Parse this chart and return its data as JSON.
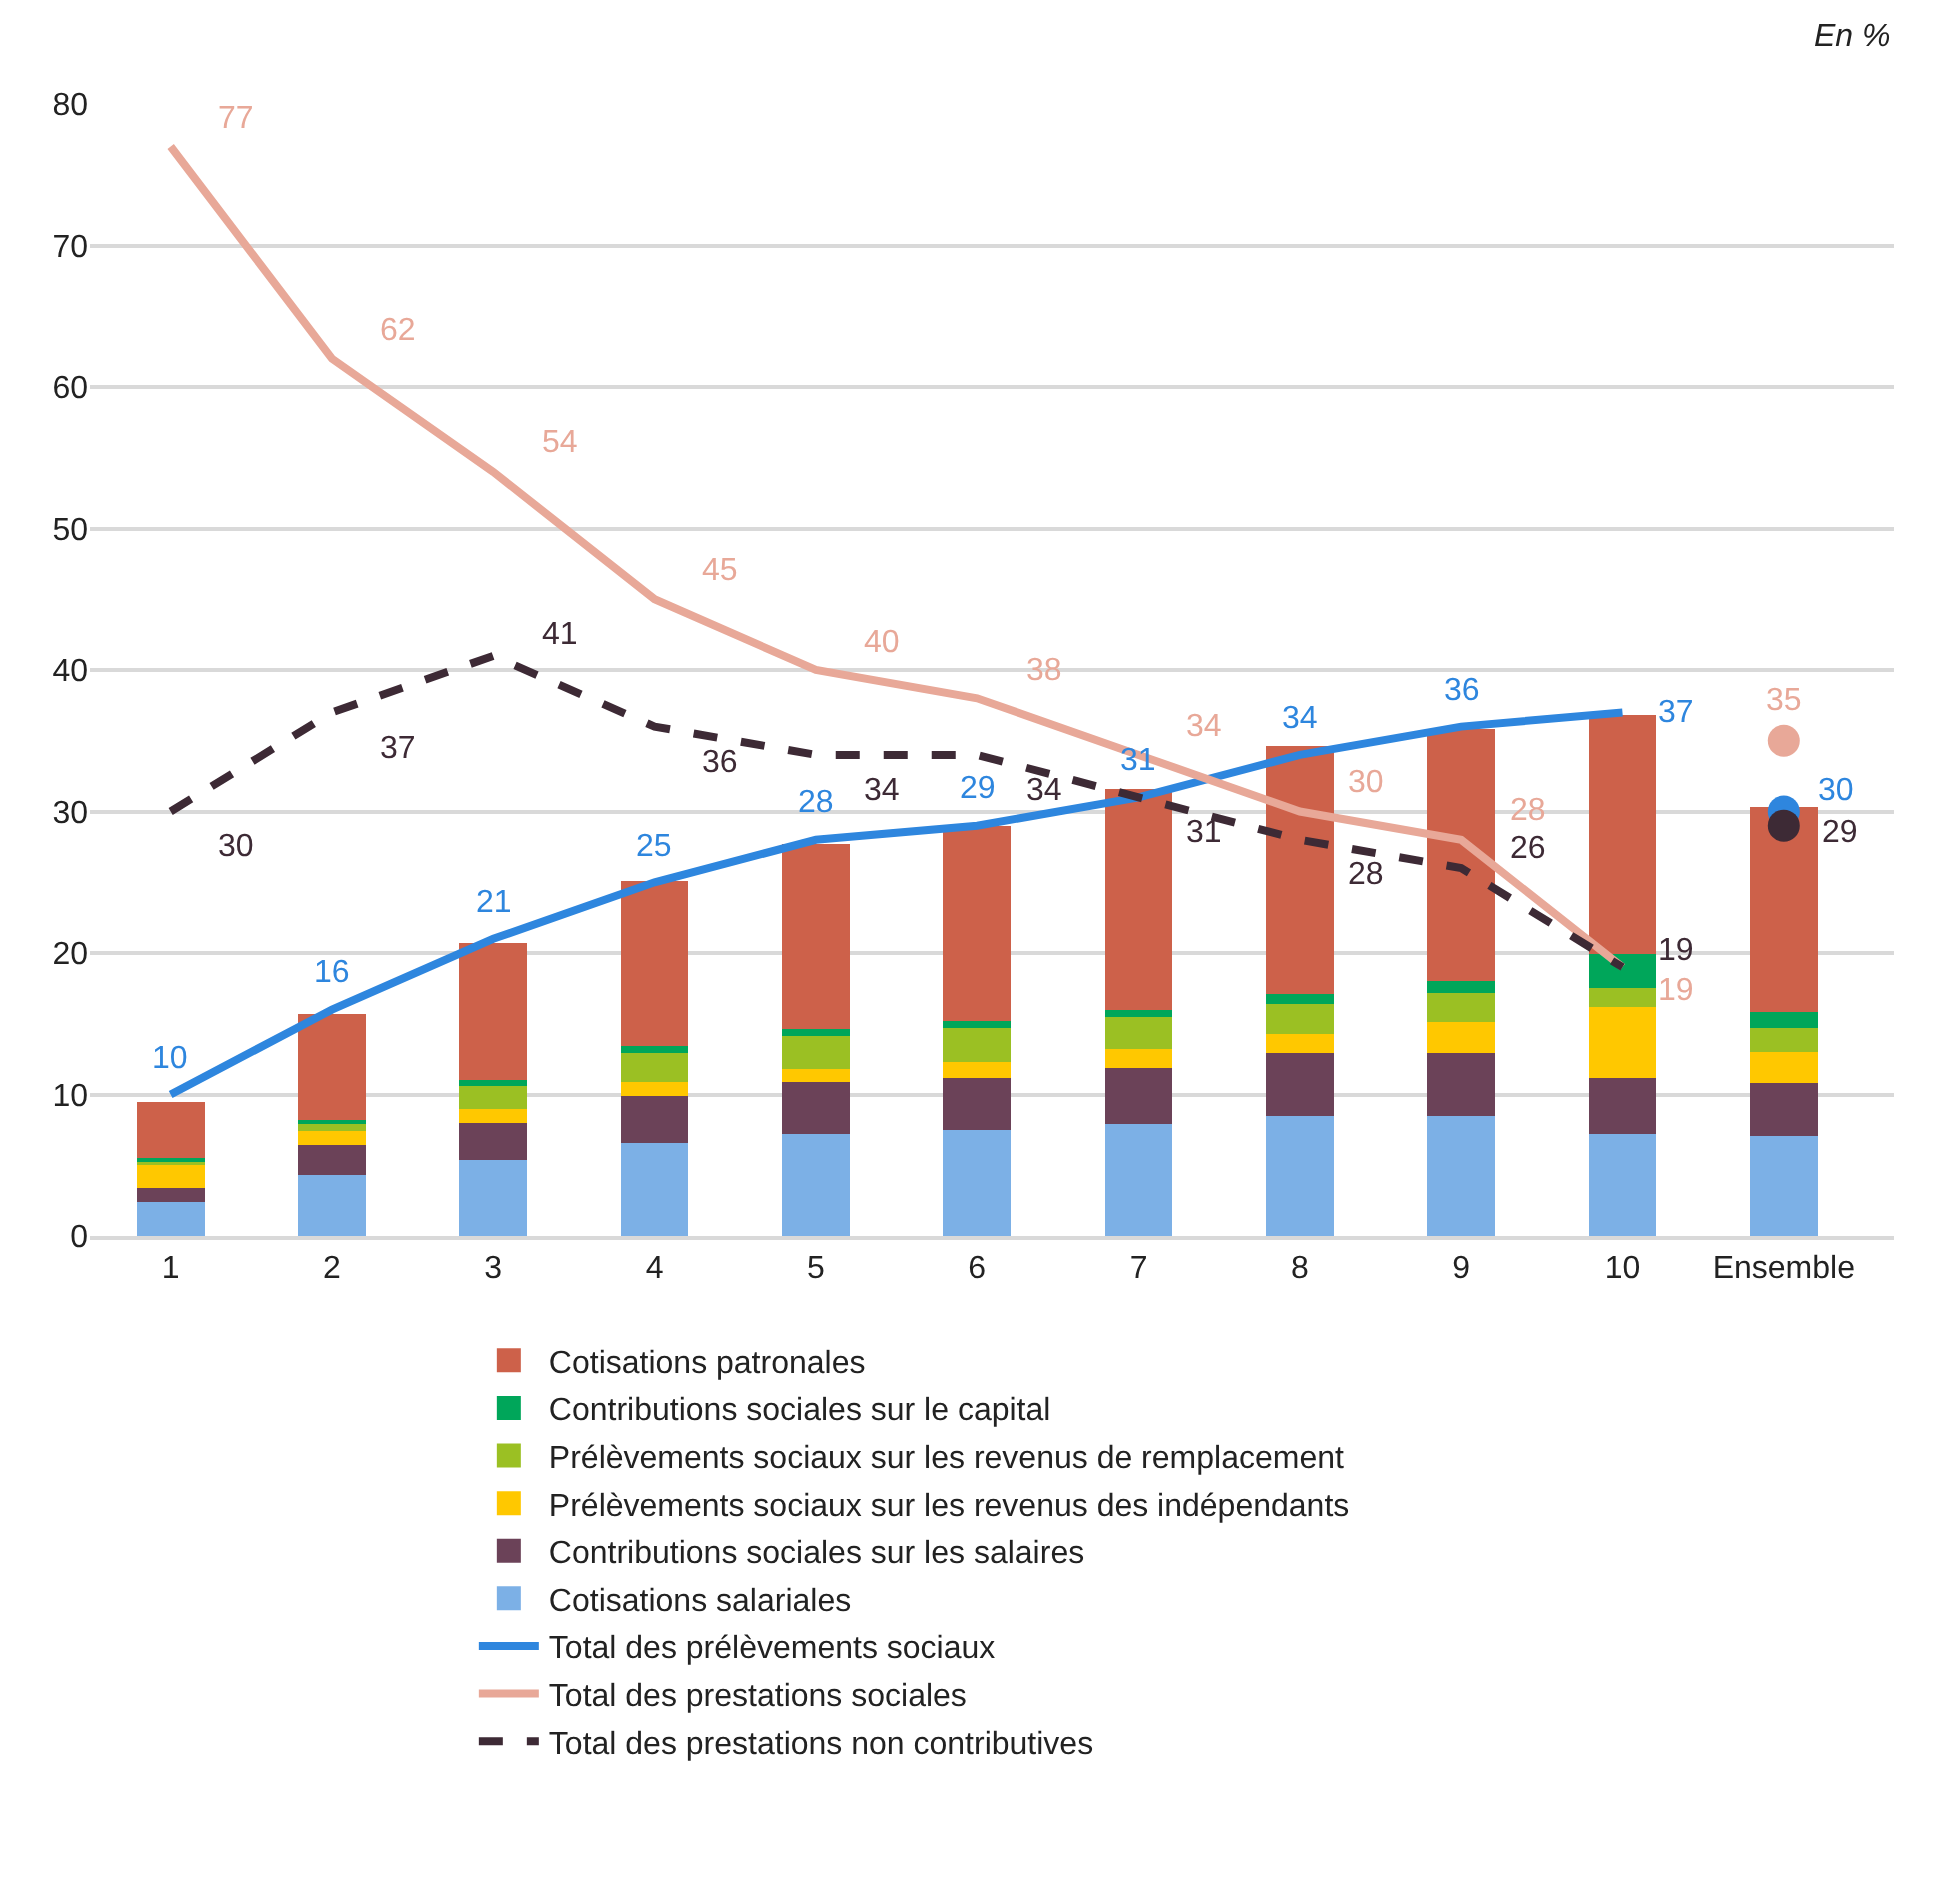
{
  "chart_data": {
    "type": "bar",
    "stacked": true,
    "annotations": [
      "En %"
    ],
    "categories": [
      "1",
      "2",
      "3",
      "4",
      "5",
      "6",
      "7",
      "8",
      "9",
      "10",
      "Ensemble"
    ],
    "ylim": [
      0,
      80
    ],
    "yticks": [
      0,
      10,
      20,
      30,
      40,
      50,
      60,
      70,
      80
    ],
    "grid": "y",
    "legend": "bottom",
    "series": [
      {
        "name": "Cotisations salariales",
        "color": "#7cb0e6",
        "values": [
          2.4,
          4.3,
          5.4,
          6.6,
          7.2,
          7.5,
          7.9,
          8.5,
          8.5,
          7.2,
          7.1
        ]
      },
      {
        "name": "Contributions sociales sur les salaires",
        "color": "#6b4258",
        "values": [
          1.0,
          2.1,
          2.6,
          3.3,
          3.7,
          3.7,
          4.0,
          4.4,
          4.4,
          4.0,
          3.7
        ]
      },
      {
        "name": "Prélèvements sociaux sur les revenus des indépendants",
        "color": "#ffc800",
        "values": [
          1.6,
          1.0,
          1.0,
          1.0,
          0.9,
          1.1,
          1.3,
          1.4,
          2.2,
          5.0,
          2.2
        ]
      },
      {
        "name": "Prélèvements sociaux sur les revenus de remplacement",
        "color": "#9bc023",
        "values": [
          0.3,
          0.6,
          1.6,
          2.0,
          2.3,
          2.4,
          2.3,
          2.1,
          2.1,
          1.3,
          1.7
        ]
      },
      {
        "name": "Contributions sociales sur le capital",
        "color": "#00a65a",
        "values": [
          0.2,
          0.2,
          0.4,
          0.5,
          0.5,
          0.5,
          0.5,
          0.7,
          0.8,
          2.4,
          1.1
        ]
      },
      {
        "name": "Cotisations patronales",
        "color": "#cd614a",
        "values": [
          4.0,
          7.5,
          9.7,
          11.7,
          13.1,
          13.8,
          15.6,
          17.5,
          17.8,
          16.9,
          14.5
        ]
      },
      {
        "name": "Total des prélèvements sociaux",
        "type": "line",
        "color": "#2e86de",
        "line_style": "solid",
        "data_labels": true,
        "x": [
          "1",
          "2",
          "3",
          "4",
          "5",
          "6",
          "7",
          "8",
          "9",
          "10"
        ],
        "values": [
          10,
          16,
          21,
          25,
          28,
          29,
          31,
          34,
          36,
          37
        ]
      },
      {
        "name": "Total des prestations sociales",
        "type": "line",
        "color": "#e8a898",
        "line_style": "solid",
        "data_labels": true,
        "x": [
          "1",
          "2",
          "3",
          "4",
          "5",
          "6",
          "7",
          "8",
          "9",
          "10"
        ],
        "values": [
          77,
          62,
          54,
          45,
          40,
          38,
          34,
          30,
          28,
          19
        ]
      },
      {
        "name": "Total des prestations non contributives",
        "type": "line",
        "color": "#3d2a35",
        "line_style": "dashed",
        "data_labels": true,
        "x": [
          "1",
          "2",
          "3",
          "4",
          "5",
          "6",
          "7",
          "8",
          "9",
          "10"
        ],
        "values": [
          30,
          37,
          41,
          36,
          34,
          34,
          31,
          28,
          26,
          19
        ]
      },
      {
        "type": "scatter",
        "color": "#e8a898",
        "marker": "circle",
        "data_labels": true,
        "x": [
          "Ensemble"
        ],
        "values": [
          35
        ]
      },
      {
        "type": "scatter",
        "color": "#2e86de",
        "marker": "circle",
        "data_labels": true,
        "x": [
          "Ensemble"
        ],
        "values": [
          30
        ]
      },
      {
        "type": "scatter",
        "color": "#3d2a35",
        "marker": "circle",
        "data_labels": true,
        "x": [
          "Ensemble"
        ],
        "values": [
          29
        ]
      }
    ]
  }
}
